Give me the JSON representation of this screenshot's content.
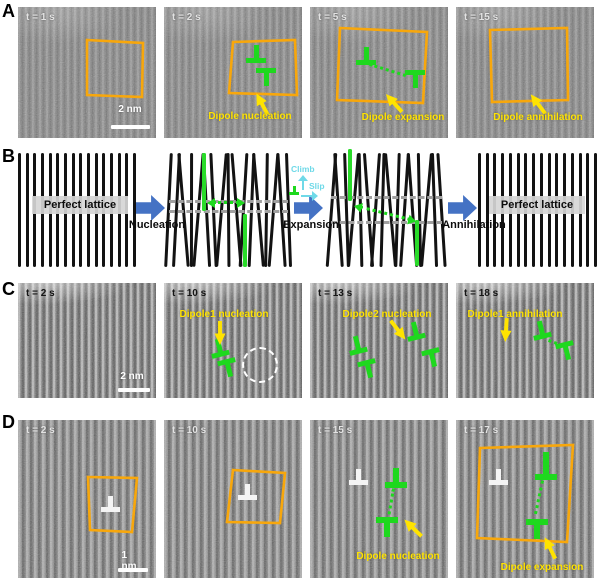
{
  "colors": {
    "roi_box_orange": "#F8A70B",
    "dislocation_green": "#1ED81E",
    "annotation_yellow": "#FFE300",
    "process_arrow_blue": "#4472C4",
    "legend_cyan": "#6FD9E8",
    "white_marker": "#F4F4F4"
  },
  "row_a": {
    "label": "A",
    "panels": [
      {
        "time": "t = 1 s",
        "scalebar_label": "2 nm"
      },
      {
        "time": "t = 2 s",
        "caption": "Dipole nucleation"
      },
      {
        "time": "t = 5 s",
        "caption": "Dipole expansion"
      },
      {
        "time": "t = 15 s",
        "caption": "Dipole annihilation"
      }
    ]
  },
  "row_b": {
    "label": "B",
    "left_lattice_label": "Perfect lattice",
    "right_lattice_label": "Perfect lattice",
    "step1_label": "Nucleation",
    "step2_label": "Expansion",
    "step3_label": "Annihilation",
    "legend_climb": "Climb",
    "legend_slip": "Slip"
  },
  "row_c": {
    "label": "C",
    "panels": [
      {
        "time": "t = 2 s",
        "scalebar_label": "2 nm"
      },
      {
        "time": "t = 10 s",
        "caption": "Dipole1 nucleation"
      },
      {
        "time": "t = 13 s",
        "caption": "Dipole2 nucleation"
      },
      {
        "time": "t = 18 s",
        "caption": "Dipole1 annihilation"
      }
    ]
  },
  "row_d": {
    "label": "D",
    "panels": [
      {
        "time": "t = 2 s",
        "scalebar_label": "1 nm"
      },
      {
        "time": "t = 10 s"
      },
      {
        "time": "t = 15 s",
        "caption": "Dipole nucleation"
      },
      {
        "time": "t = 17 s",
        "caption": "Dipole expansion"
      }
    ]
  }
}
